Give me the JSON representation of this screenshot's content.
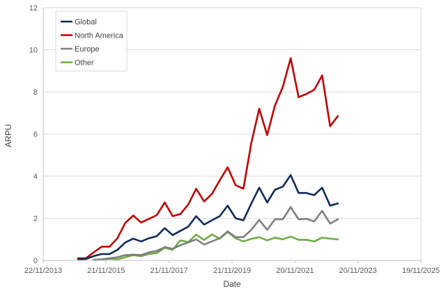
{
  "chart_data": {
    "type": "line",
    "xlabel": "Date",
    "ylabel": "ARPU",
    "xlim": [
      "2013-11-22",
      "2025-11-19"
    ],
    "ylim": [
      0,
      12
    ],
    "x_ticks": [
      "22/11/2013",
      "21/11/2015",
      "21/11/2017",
      "21/11/2019",
      "20/11/2021",
      "20/11/2023",
      "19/11/2025"
    ],
    "y_ticks": [
      0,
      2,
      4,
      6,
      8,
      10,
      12
    ],
    "grid": "horizontal",
    "legend_position": "top-left",
    "x": [
      "2015-01-01",
      "2015-04-01",
      "2015-07-01",
      "2015-10-01",
      "2016-01-01",
      "2016-04-01",
      "2016-07-01",
      "2016-10-01",
      "2017-01-01",
      "2017-04-01",
      "2017-07-01",
      "2017-10-01",
      "2018-01-01",
      "2018-04-01",
      "2018-07-01",
      "2018-10-01",
      "2019-01-01",
      "2019-04-01",
      "2019-07-01",
      "2019-10-01",
      "2020-01-01",
      "2020-04-01",
      "2020-07-01",
      "2020-10-01",
      "2021-01-01",
      "2021-04-01",
      "2021-07-01",
      "2021-10-01",
      "2022-01-01",
      "2022-04-01",
      "2022-07-01",
      "2022-10-01",
      "2023-01-01",
      "2023-04-01",
      "2023-07-01"
    ],
    "series": [
      {
        "name": "Global",
        "color": "#0f2a56",
        "values": [
          0.05,
          0.07,
          0.2,
          0.3,
          0.3,
          0.5,
          0.85,
          1.03,
          0.9,
          1.05,
          1.15,
          1.53,
          1.2,
          1.4,
          1.6,
          2.1,
          1.7,
          1.9,
          2.1,
          2.6,
          2.0,
          1.9,
          2.7,
          3.45,
          2.75,
          3.35,
          3.5,
          4.05,
          3.2,
          3.2,
          3.1,
          3.45,
          2.6,
          2.7,
          null
        ]
      },
      {
        "name": "North America",
        "color": "#c00000",
        "values": [
          0.1,
          0.1,
          0.38,
          0.65,
          0.65,
          1.05,
          1.78,
          2.13,
          1.8,
          1.97,
          2.15,
          2.75,
          2.1,
          2.2,
          2.65,
          3.4,
          2.8,
          3.15,
          3.8,
          4.42,
          3.57,
          3.4,
          5.57,
          7.2,
          5.95,
          7.35,
          8.23,
          9.6,
          7.75,
          7.9,
          8.1,
          8.78,
          6.37,
          6.85,
          null
        ]
      },
      {
        "name": "Europe",
        "color": "#7f7f7f",
        "values": [
          null,
          null,
          0.03,
          0.05,
          0.1,
          0.15,
          0.25,
          0.27,
          0.25,
          0.38,
          0.45,
          0.63,
          0.55,
          0.72,
          0.85,
          1.0,
          0.75,
          0.9,
          1.05,
          1.38,
          1.1,
          1.1,
          1.45,
          1.92,
          1.45,
          1.95,
          1.95,
          2.53,
          1.95,
          1.97,
          1.85,
          2.35,
          1.75,
          1.95,
          null
        ]
      },
      {
        "name": "Other",
        "color": "#70ad47",
        "values": [
          null,
          null,
          0.02,
          0.04,
          0.08,
          0.05,
          0.15,
          0.25,
          0.2,
          0.3,
          0.35,
          0.6,
          0.5,
          0.95,
          0.87,
          1.22,
          0.97,
          1.23,
          1.03,
          1.35,
          1.05,
          0.9,
          1.02,
          1.1,
          0.95,
          1.08,
          1.0,
          1.13,
          0.98,
          0.98,
          0.9,
          1.08,
          1.03,
          1.0,
          null
        ]
      }
    ]
  }
}
